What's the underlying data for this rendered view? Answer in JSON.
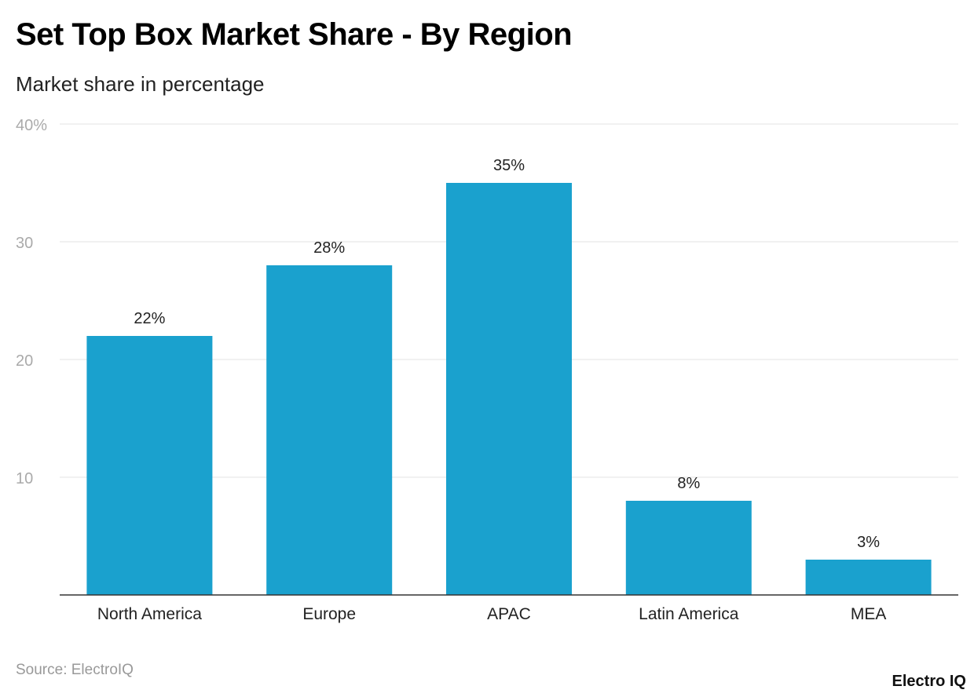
{
  "chart_data": {
    "type": "bar",
    "title": "Set Top Box Market Share - By Region",
    "subtitle": "Market share in percentage",
    "categories": [
      "North America",
      "Europe",
      "APAC",
      "Latin America",
      "MEA"
    ],
    "values": [
      22,
      28,
      35,
      8,
      3
    ],
    "data_labels": [
      "22%",
      "28%",
      "35%",
      "8%",
      "3%"
    ],
    "ylim": [
      0,
      40
    ],
    "yticks": [
      10,
      20,
      30,
      40
    ],
    "ytick_labels": [
      "10",
      "20",
      "30",
      "40%"
    ],
    "grid": true,
    "bar_color": "#1aa1ce"
  },
  "source": "Source: ElectroIQ",
  "logo": "Electro IQ"
}
